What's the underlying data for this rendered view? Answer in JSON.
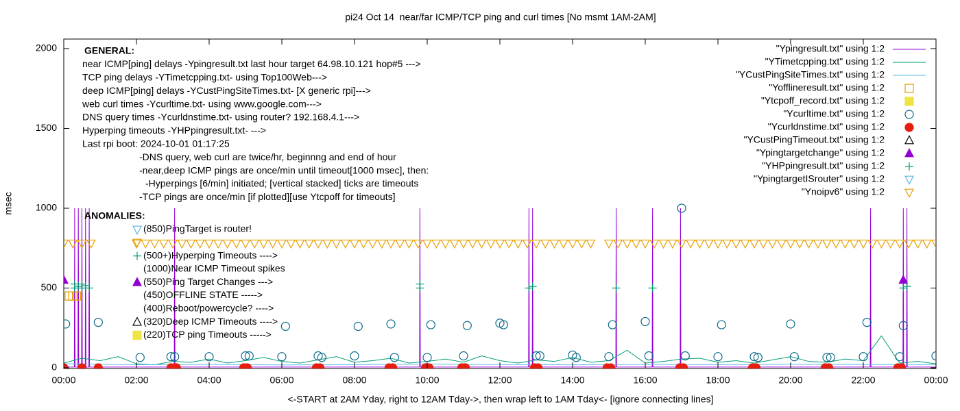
{
  "chart_data": {
    "type": "scatter",
    "title": "pi24 Oct 14  near/far ICMP/TCP ping and curl times [No msmt 1AM-2AM]",
    "x_label": "<-START at 2AM Yday, right to 12AM Tday->, then wrap left to 1AM Tday<- [ignore connecting lines]",
    "y_label": "msec",
    "xlim": [
      0,
      24
    ],
    "ylim": [
      0,
      2060
    ],
    "xticks": [
      {
        "value": 0,
        "label": "00:00"
      },
      {
        "value": 2,
        "label": "02:00"
      },
      {
        "value": 4,
        "label": "04:00"
      },
      {
        "value": 6,
        "label": "06:00"
      },
      {
        "value": 8,
        "label": "08:00"
      },
      {
        "value": 10,
        "label": "10:00"
      },
      {
        "value": 12,
        "label": "12:00"
      },
      {
        "value": 14,
        "label": "14:00"
      },
      {
        "value": 16,
        "label": "16:00"
      },
      {
        "value": 18,
        "label": "18:00"
      },
      {
        "value": 20,
        "label": "20:00"
      },
      {
        "value": 22,
        "label": "22:00"
      },
      {
        "value": 24,
        "label": "00:00"
      }
    ],
    "yticks": [
      0,
      500,
      1000,
      1500,
      2000
    ],
    "legend": "top-right",
    "annotations_general": [
      "GENERAL:",
      "near ICMP[ping] delays -Ypingresult.txt last hour target 64.98.10.121 hop#5 --->",
      "TCP ping delays -YTimetcpping.txt- using Top100Web--->",
      "deep ICMP[ping] delays -YCustPingSiteTimes.txt- [X generic rpi]--->",
      "web curl times -Ycurltime.txt- using www.google.com--->",
      "DNS query times -Ycurldnstime.txt- using router? 192.168.4.1--->",
      "Hyperping timeouts -YHPpingresult.txt- --->",
      "Last rpi boot: 2024-10-01 01:17:25",
      "-DNS query, web curl are twice/hr, beginnng and end of hour",
      "-near,deep ICMP pings are once/min until timeout[1000 msec], then:",
      "-Hyperpings [6/min] initiated; [vertical stacked] ticks are timeouts",
      "-TCP pings are once/min [if plotted][use Ytcpoff for timeouts]"
    ],
    "annotations_anomalies_title": "ANOMALIES:",
    "annotations_anomalies": [
      "(850)PingTarget is router!",
      "(500+)Hyperping Timeouts ---->",
      "(1000)Near ICMP Timeout spikes",
      "(550)Ping Target Changes --->",
      "(450)OFFLINE STATE ----->",
      "(400)Reboot/powercycle? ---->",
      "(320)Deep ICMP Timeouts ---->",
      "(220)TCP ping Timeouts ----->"
    ],
    "series": [
      {
        "name": "\"Ypingresult.txt\" using 1:2",
        "color": "#9400d3",
        "marker": "line",
        "x": [
          0,
          0.29,
          0.3,
          0.31,
          0.39,
          0.4,
          0.41,
          0.49,
          0.5,
          0.51,
          0.59,
          0.6,
          0.61,
          0.69,
          0.7,
          0.71,
          2,
          3.04,
          3.05,
          3.06,
          6,
          9.79,
          9.8,
          9.81,
          12.79,
          12.8,
          12.81,
          12.89,
          12.9,
          12.91,
          15.19,
          15.2,
          15.21,
          16.19,
          16.2,
          16.21,
          16.96,
          16.97,
          16.98,
          20,
          22.19,
          22.2,
          22.21,
          23.09,
          23.1,
          23.11,
          23.19,
          23.2,
          23.21,
          24
        ],
        "values": [
          5,
          5,
          1000,
          5,
          5,
          1000,
          5,
          5,
          1000,
          5,
          5,
          1000,
          5,
          5,
          1000,
          5,
          5,
          5,
          1000,
          5,
          5,
          5,
          1000,
          5,
          5,
          1000,
          5,
          5,
          1000,
          5,
          5,
          1000,
          5,
          5,
          1000,
          5,
          5,
          1000,
          5,
          5,
          5,
          1000,
          5,
          5,
          1000,
          5,
          5,
          1000,
          5,
          5
        ]
      },
      {
        "name": "\"YTimetcpping.txt\" using 1:2",
        "color": "#009e73",
        "marker": "line",
        "x": [
          0,
          0.5,
          1,
          1.5,
          2,
          2.5,
          3,
          3.5,
          4,
          4.5,
          5,
          5.5,
          6,
          6.5,
          7,
          7.5,
          8,
          8.5,
          9,
          9.5,
          10,
          10.5,
          11,
          11.5,
          12,
          12.5,
          13,
          13.5,
          14,
          14.5,
          15,
          15.5,
          16,
          16.5,
          17,
          17.5,
          18,
          18.5,
          19,
          19.5,
          20,
          20.5,
          21,
          21.5,
          22,
          22.5,
          23,
          23.5,
          24
        ],
        "values": [
          30,
          60,
          45,
          70,
          25,
          20,
          40,
          35,
          55,
          30,
          45,
          65,
          40,
          30,
          50,
          70,
          35,
          45,
          60,
          30,
          40,
          55,
          35,
          75,
          45,
          30,
          50,
          40,
          65,
          35,
          45,
          110,
          30,
          40,
          55,
          60,
          35,
          45,
          30,
          50,
          70,
          40,
          35,
          55,
          45,
          200,
          30,
          40,
          25
        ]
      },
      {
        "name": "\"YCustPingSiteTimes.txt\" using 1:2",
        "color": "#56b4e9",
        "marker": "line",
        "x": [
          0,
          2,
          4,
          6,
          8,
          10,
          12,
          14,
          16,
          18,
          20,
          22,
          24
        ],
        "values": [
          25,
          20,
          22,
          18,
          20,
          24,
          21,
          19,
          22,
          20,
          23,
          21,
          20
        ]
      },
      {
        "name": "\"Yofflineresult.txt\" using 1:2",
        "color": "#e69f00",
        "marker": "square-open",
        "x": [
          0.15,
          0.25,
          0.35
        ],
        "values": [
          450,
          450,
          450
        ]
      },
      {
        "name": "\"Ytcpoff_record.txt\" using 1:2",
        "color": "#f0e442",
        "marker": "square",
        "x": [],
        "values": []
      },
      {
        "name": "\"Ycurltime.txt\" using 1:2",
        "color": "#0b6a8a",
        "marker": "circle-open",
        "x": [
          0.05,
          0.95,
          2.1,
          2.95,
          3.05,
          4,
          5,
          5.1,
          6,
          6.1,
          7,
          7.1,
          8,
          8.1,
          9,
          9.1,
          10,
          10.1,
          11,
          11.1,
          12,
          12.1,
          13,
          13.1,
          14,
          14.1,
          15,
          15.1,
          16,
          16.1,
          17,
          17.1,
          18,
          18.1,
          19,
          19.1,
          20,
          20.1,
          21,
          21.1,
          22,
          22.1,
          23,
          23.1,
          24
        ],
        "values": [
          275,
          285,
          65,
          70,
          70,
          70,
          75,
          75,
          70,
          260,
          75,
          65,
          75,
          260,
          275,
          65,
          65,
          270,
          75,
          265,
          280,
          270,
          75,
          75,
          80,
          65,
          70,
          270,
          290,
          75,
          1000,
          75,
          70,
          270,
          70,
          65,
          275,
          70,
          65,
          65,
          70,
          285,
          70,
          265,
          75
        ]
      },
      {
        "name": "\"Ycurldnstime.txt\" using 1:2",
        "color": "#e51e10",
        "marker": "circle",
        "x": [
          0,
          0.5,
          0.95,
          2.95,
          3.05,
          3.1,
          4.95,
          5.05,
          6.95,
          7.05,
          8.95,
          9.05,
          9.95,
          10.05,
          10.95,
          11.05,
          12.95,
          13.05,
          14.95,
          15.05,
          16.95,
          17.05,
          18.95,
          19.05,
          20.95,
          21.05,
          22.95,
          23.05
        ],
        "values": [
          0,
          0,
          0,
          0,
          0,
          0,
          0,
          0,
          0,
          0,
          0,
          0,
          0,
          0,
          0,
          0,
          0,
          0,
          0,
          0,
          0,
          0,
          0,
          0,
          0,
          0,
          0,
          0
        ]
      },
      {
        "name": "\"YCustPingTimeout.txt\" using 1:2",
        "color": "#000000",
        "marker": "triangle-open",
        "x": [],
        "values": []
      },
      {
        "name": "\"Ypingtargetchange\" using 1:2",
        "color": "#9400d3",
        "marker": "triangle",
        "x": [
          0,
          23.1
        ],
        "values": [
          550,
          550
        ]
      },
      {
        "name": "\"YHPpingresult.txt\" using 1:2",
        "color": "#009e73",
        "marker": "plus",
        "x": [
          0.3,
          0.3,
          0.4,
          0.5,
          0.5,
          0.6,
          0.7,
          9.8,
          9.8,
          12.8,
          12.9,
          15.2,
          16.2,
          23.1,
          23.2
        ],
        "values": [
          500,
          525,
          510,
          500,
          525,
          515,
          500,
          500,
          525,
          500,
          510,
          500,
          500,
          500,
          510
        ]
      },
      {
        "name": "\"YpingtargetISrouter\" using 1:2",
        "color": "#56b4e9",
        "marker": "triangle-down-open",
        "x": [],
        "values": []
      },
      {
        "name": "\"Ynoipv6\" using 1:2",
        "color": "#e69f00",
        "marker": "triangle-down-open",
        "x": [
          0,
          0.25,
          0.5,
          0.75,
          2,
          2.25,
          2.5,
          2.75,
          3,
          3.25,
          3.5,
          3.75,
          4,
          4.25,
          4.5,
          4.75,
          5,
          5.25,
          5.5,
          5.75,
          6,
          6.25,
          6.5,
          6.75,
          7,
          7.25,
          7.5,
          7.75,
          8,
          8.25,
          8.5,
          8.75,
          9,
          9.25,
          9.5,
          9.75,
          10,
          10.25,
          10.5,
          10.75,
          11,
          11.25,
          11.5,
          11.75,
          12,
          12.25,
          12.5,
          12.75,
          13,
          13.25,
          13.5,
          13.75,
          14,
          14.25,
          14.5,
          15,
          15.25,
          15.5,
          15.75,
          16,
          16.25,
          16.5,
          16.75,
          17,
          17.25,
          17.5,
          17.75,
          18,
          18.25,
          18.5,
          18.75,
          19,
          19.25,
          19.5,
          19.75,
          20,
          20.25,
          20.5,
          20.75,
          21,
          21.25,
          21.5,
          21.75,
          22,
          22.25,
          22.5,
          22.75,
          23,
          23.25,
          23.5,
          23.75,
          24
        ],
        "values": [
          780,
          780,
          780,
          780,
          780,
          780,
          780,
          780,
          780,
          780,
          780,
          780,
          780,
          780,
          780,
          780,
          780,
          780,
          780,
          780,
          780,
          780,
          780,
          780,
          780,
          780,
          780,
          780,
          780,
          780,
          780,
          780,
          780,
          780,
          780,
          780,
          780,
          780,
          780,
          780,
          780,
          780,
          780,
          780,
          780,
          780,
          780,
          780,
          780,
          780,
          780,
          780,
          780,
          780,
          780,
          780,
          780,
          780,
          780,
          780,
          780,
          780,
          780,
          780,
          780,
          780,
          780,
          780,
          780,
          780,
          780,
          780,
          780,
          780,
          780,
          780,
          780,
          780,
          780,
          780,
          780,
          780,
          780,
          780,
          780,
          780,
          780,
          780,
          780,
          780,
          780,
          780
        ]
      }
    ]
  }
}
